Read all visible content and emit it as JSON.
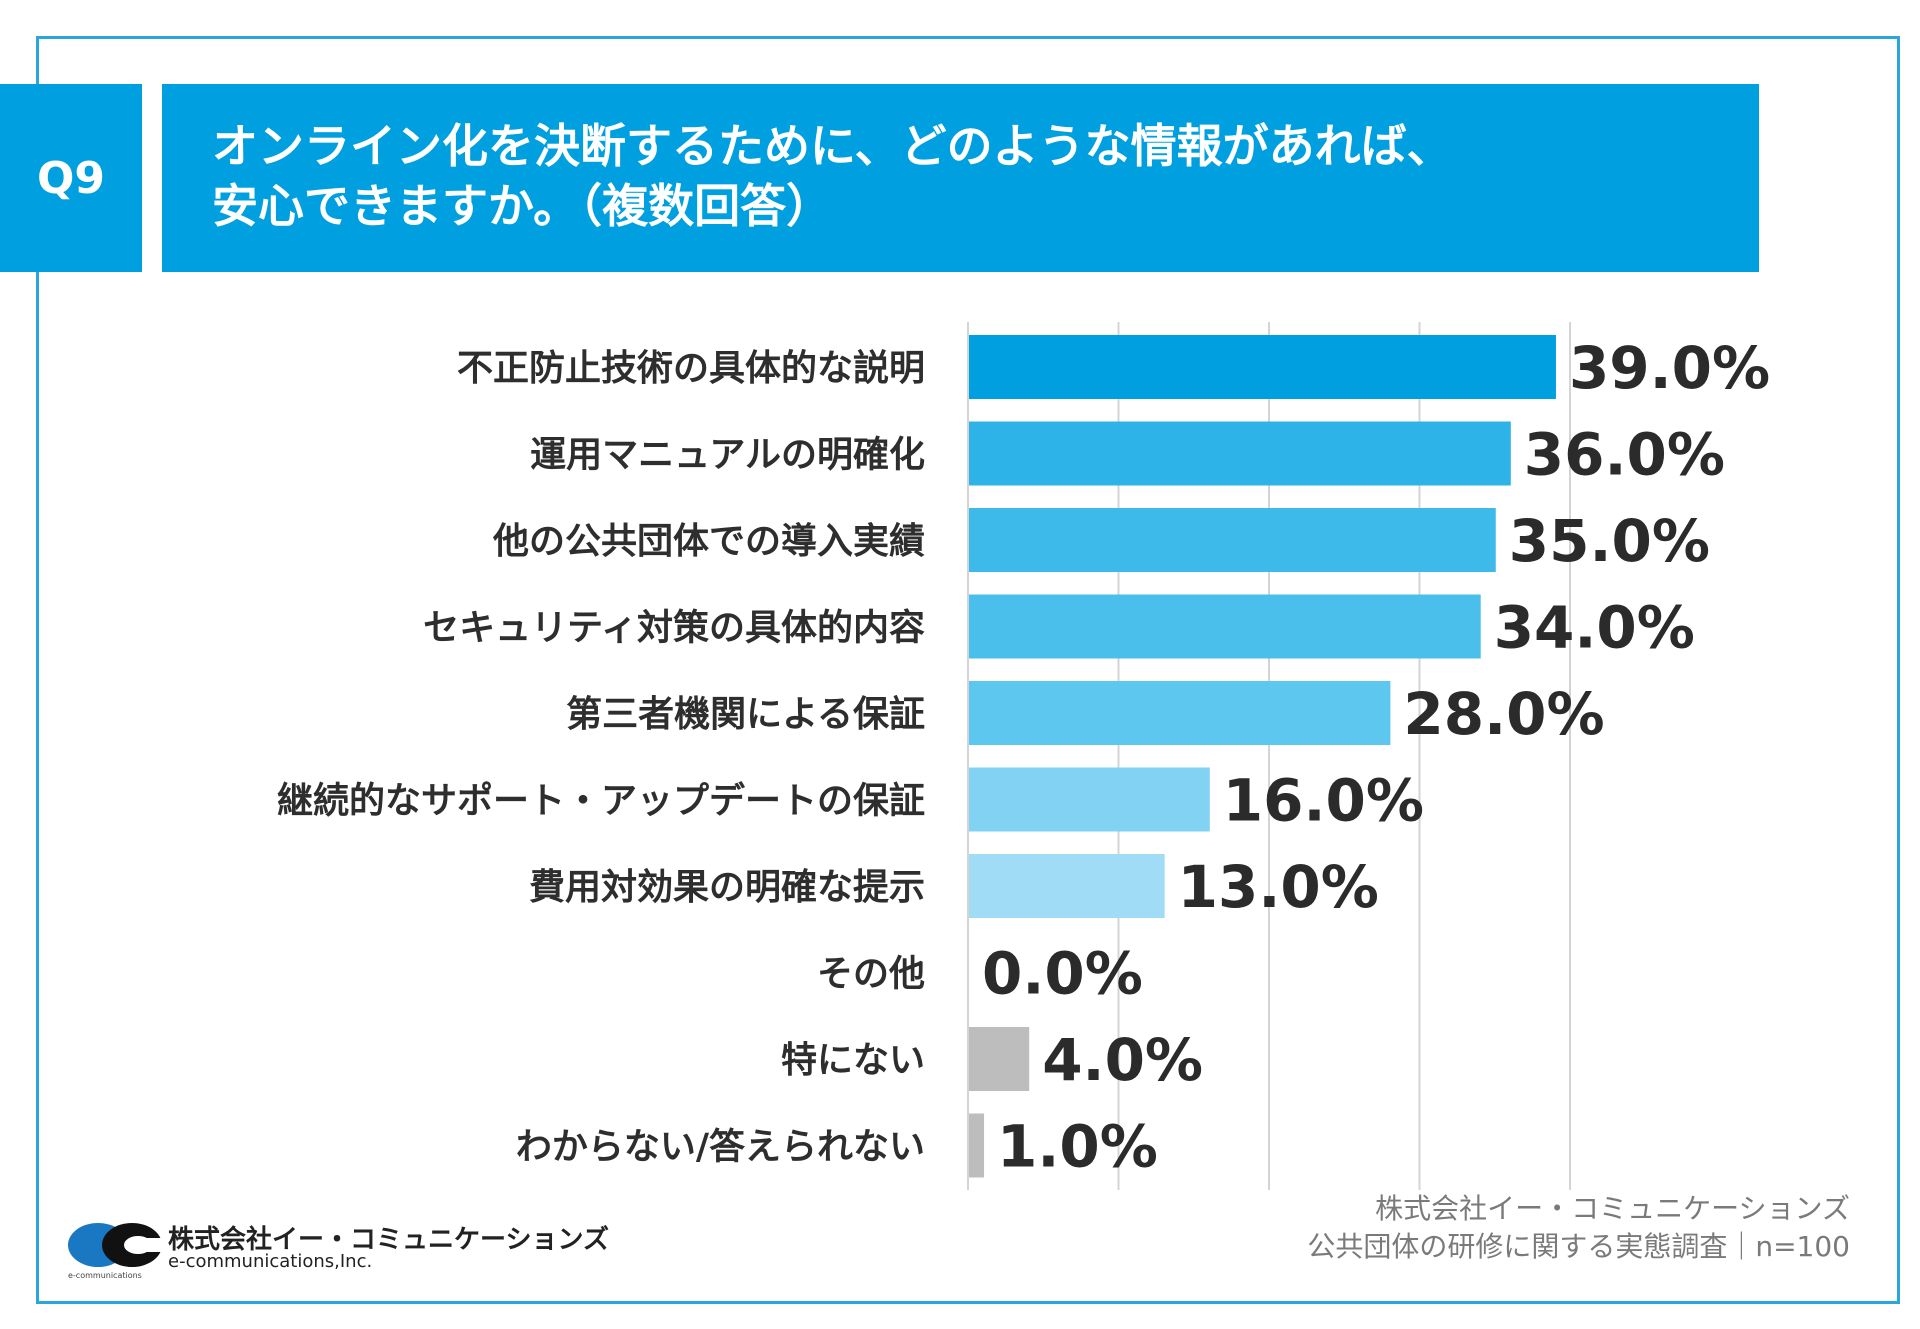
{
  "question_badge": "Q9",
  "title": {
    "line1": "オンライン化を決断するために、どのような情報があれば、",
    "line2": "安心できますか。（複数回答）"
  },
  "chart_data": {
    "type": "bar",
    "orientation": "horizontal",
    "categories": [
      "不正防止技術の具体的な説明",
      "運用マニュアルの明確化",
      "他の公共団体での導入実績",
      "セキュリティ対策の具体的内容",
      "第三者機関による保証",
      "継続的なサポート・アップデートの保証",
      "費用対効果の明確な提示",
      "その他",
      "特にない",
      "わからない/答えられない"
    ],
    "values": [
      39.0,
      36.0,
      35.0,
      34.0,
      28.0,
      16.0,
      13.0,
      0.0,
      4.0,
      1.0
    ],
    "value_labels": [
      "39.0%",
      "36.0%",
      "35.0%",
      "34.0%",
      "28.0%",
      "16.0%",
      "13.0%",
      "0.0%",
      "4.0%",
      "1.0%"
    ],
    "bar_colors": [
      "#00a0e0",
      "#2eb3e8",
      "#3db9ea",
      "#4bbfec",
      "#5ec7ef",
      "#82d3f3",
      "#a0dcf6",
      "#a0dcf6",
      "#bdbdbd",
      "#bdbdbd"
    ],
    "unit": "%",
    "xlim": [
      0,
      40
    ],
    "grid": true,
    "gridlines_at": [
      10,
      20,
      30,
      40
    ]
  },
  "source": {
    "company": "株式会社イー・コミュニケーションズ",
    "survey": "公共団体の研修に関する実態調査｜n=100"
  },
  "logo": {
    "name_jp": "株式会社イー・コミュニケーションズ",
    "name_en": "e-communications,Inc.",
    "small_text": "e-communications",
    "colors": {
      "blue": "#1a78c2",
      "black": "#111111"
    }
  }
}
